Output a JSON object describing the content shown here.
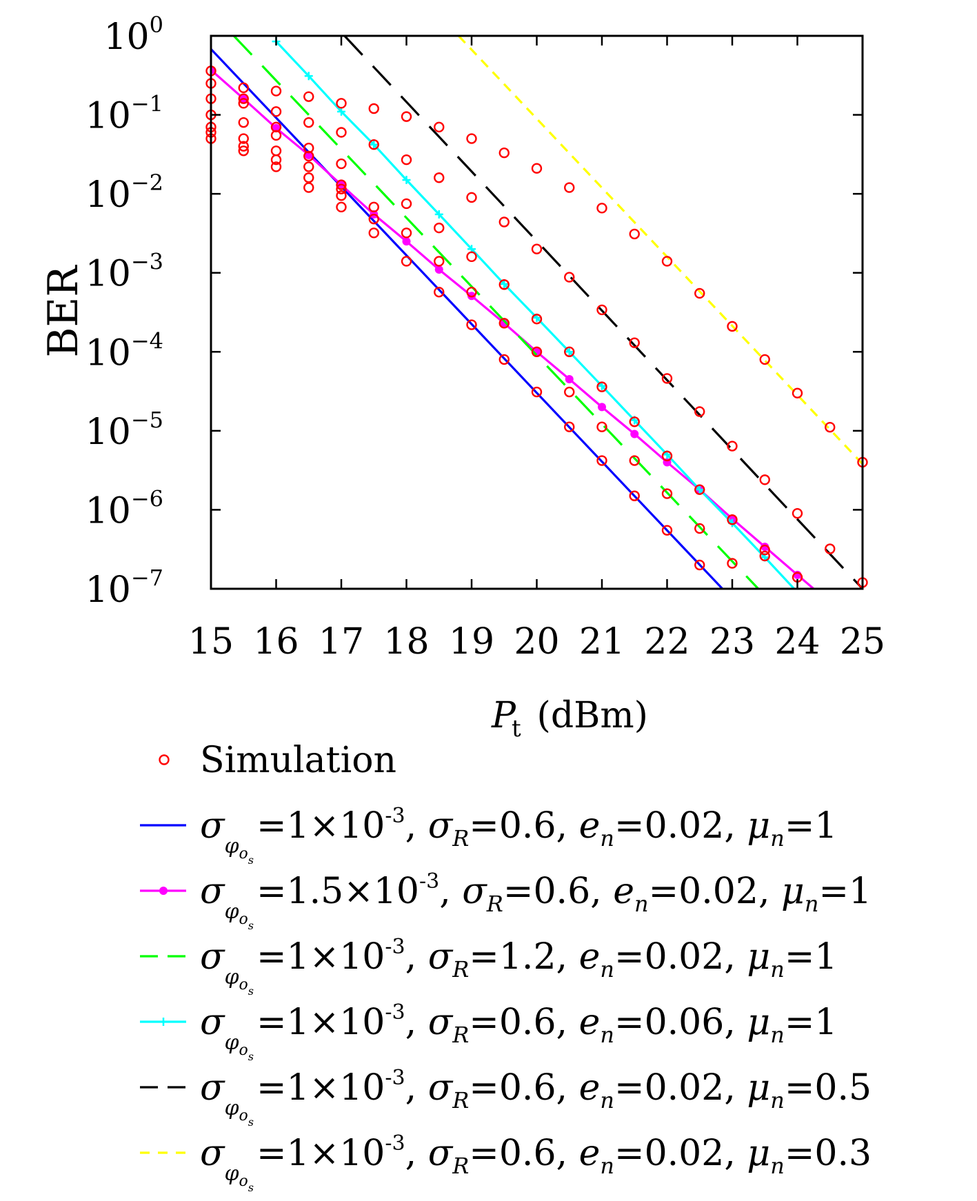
{
  "chart_data": {
    "type": "line",
    "yscale": "log",
    "xlabel": "P_t (dBm)",
    "ylabel": "BER",
    "xlim": [
      15,
      25
    ],
    "ylim": [
      1e-07,
      1
    ],
    "xticks": [
      15,
      16,
      17,
      18,
      19,
      20,
      21,
      22,
      23,
      24,
      25
    ],
    "yticks": [
      0,
      -1,
      -2,
      -3,
      -4,
      -5,
      -6,
      -7
    ],
    "grid": false,
    "legend_position": "below",
    "simulation": {
      "name": "Simulation",
      "color": "#ff0000",
      "x": [
        15,
        15,
        15,
        15,
        15,
        15,
        15,
        15.5,
        15.5,
        15.5,
        15.5,
        15.5,
        15.5,
        15.5,
        16,
        16,
        16,
        16,
        16,
        16,
        16,
        16.5,
        16.5,
        16.5,
        16.5,
        16.5,
        16.5,
        16.5,
        17,
        17,
        17,
        17,
        17,
        17,
        17,
        17.5,
        17.5,
        17.5,
        17.5,
        17.5,
        18,
        18,
        18,
        18,
        18,
        18.5,
        18.5,
        18.5,
        18.5,
        18.5,
        19,
        19,
        19,
        19,
        19,
        19.5,
        19.5,
        19.5,
        19.5,
        19.5,
        20,
        20,
        20,
        20,
        20,
        20.5,
        20.5,
        20.5,
        20.5,
        20.5,
        21,
        21,
        21,
        21,
        21,
        21.5,
        21.5,
        21.5,
        21.5,
        21.5,
        22,
        22,
        22,
        22,
        22,
        22.5,
        22.5,
        22.5,
        22.5,
        22.5,
        23,
        23,
        23,
        23,
        23.5,
        23.5,
        23.5,
        23.5,
        24,
        24,
        24,
        24.5,
        24.5,
        25,
        25
      ],
      "y": [
        0.36,
        0.25,
        0.16,
        0.1,
        0.07,
        0.06,
        0.05,
        0.22,
        0.14,
        0.08,
        0.05,
        0.04,
        0.035,
        0.16,
        0.2,
        0.11,
        0.055,
        0.035,
        0.027,
        0.022,
        0.07,
        0.17,
        0.08,
        0.038,
        0.022,
        0.016,
        0.012,
        0.03,
        0.14,
        0.06,
        0.024,
        0.013,
        0.0095,
        0.0068,
        0.0115,
        0.12,
        0.042,
        0.0068,
        0.0048,
        0.0032,
        0.095,
        0.027,
        0.0075,
        0.0032,
        0.0014,
        0.07,
        0.016,
        0.0037,
        0.0014,
        0.00057,
        0.05,
        0.009,
        0.0016,
        0.00057,
        0.00022,
        0.033,
        0.0044,
        0.00071,
        0.00023,
        8e-05,
        0.021,
        0.002,
        0.00026,
        0.0001,
        3.1e-05,
        0.012,
        0.00088,
        0.0001,
        3.1e-05,
        1.12e-05,
        0.0066,
        0.00034,
        3.6e-05,
        1.12e-05,
        4.2e-06,
        0.0031,
        0.00013,
        1.3e-05,
        4.2e-06,
        1.5e-06,
        0.0014,
        4.6e-05,
        4.8e-06,
        1.6e-06,
        5.5e-07,
        0.00055,
        1.75e-05,
        1.8e-06,
        5.8e-07,
        2e-07,
        0.00021,
        6.4e-06,
        7.5e-07,
        2.1e-07,
        8e-05,
        2.4e-06,
        3.1e-07,
        2.6e-07,
        3e-05,
        9e-07,
        1.4e-07,
        1.11e-05,
        3.2e-07,
        4e-06,
        1.2e-07
      ]
    },
    "series": [
      {
        "name": "σ_φos=1×10^-3, σ_R=0.6, e_n=0.02, μ_n=1",
        "color": "#0000ff",
        "style": "solid",
        "marker": "none",
        "x": [
          15,
          22.85
        ],
        "y": [
          0.68,
          1e-07
        ]
      },
      {
        "name": "σ_φos=1.5×10^-3, σ_R=0.6, e_n=0.02, μ_n=1",
        "color": "#ff00ff",
        "style": "solid",
        "marker": "dot",
        "x": [
          15,
          15.5,
          16,
          16.5,
          17,
          17.5,
          18,
          18.5,
          19,
          19.5,
          20,
          20.5,
          21,
          21.5,
          22,
          22.5,
          23,
          23.5,
          24,
          24.25
        ],
        "y": [
          0.37,
          0.16,
          0.068,
          0.031,
          0.013,
          0.0055,
          0.0025,
          0.0011,
          0.00051,
          0.00023,
          0.0001,
          4.5e-05,
          2e-05,
          9.1e-06,
          4e-06,
          1.8e-06,
          7.7e-07,
          3.4e-07,
          1.5e-07,
          1e-07
        ]
      },
      {
        "name": "σ_φos=1×10^-3, σ_R=1.2, e_n=0.02, μ_n=1",
        "color": "#00ff00",
        "style": "dashed",
        "marker": "none",
        "x": [
          15.35,
          23.4
        ],
        "y": [
          1.0,
          1e-07
        ]
      },
      {
        "name": "σ_φos=1×10^-3, σ_R=0.6, e_n=0.06, μ_n=1",
        "color": "#00ffff",
        "style": "solid",
        "marker": "plus",
        "x": [
          16,
          16.5,
          17,
          17.5,
          18,
          18.5,
          19,
          19.5,
          20,
          20.5,
          21,
          21.5,
          22,
          22.5,
          23,
          23.5,
          23.95
        ],
        "y": [
          0.85,
          0.31,
          0.11,
          0.042,
          0.015,
          0.0055,
          0.002,
          0.00072,
          0.00027,
          0.0001,
          3.7e-05,
          1.36e-05,
          5e-06,
          1.8e-06,
          6.8e-07,
          2.5e-07,
          1e-07
        ]
      },
      {
        "name": "σ_φos=1×10^-3, σ_R=0.6, e_n=0.02, μ_n=0.5",
        "color": "#000000",
        "style": "dashed",
        "marker": "none",
        "x": [
          17.05,
          25
        ],
        "y": [
          1.0,
          1e-07
        ]
      },
      {
        "name": "σ_φos=1×10^-3, σ_R=0.6, e_n=0.02, μ_n=0.3",
        "color": "#ffff00",
        "style": "dotted-dash",
        "marker": "none",
        "x": [
          18.8,
          25
        ],
        "y": [
          1.0,
          3.8e-06
        ]
      }
    ]
  },
  "axes": {
    "xtick_labels": [
      "15",
      "16",
      "17",
      "18",
      "19",
      "20",
      "21",
      "22",
      "23",
      "24",
      "25"
    ],
    "ytick_base": "10",
    "ytick_exponents": [
      "0",
      "−1",
      "−2",
      "−3",
      "−4",
      "−5",
      "−6",
      "−7"
    ],
    "ylabel": "BER",
    "xlabel_symbol": "P",
    "xlabel_subscript": "t",
    "xlabel_unit": " (dBm)"
  },
  "legend": {
    "entries": [
      {
        "label_parts": [
          "Simulation"
        ]
      },
      {
        "sigma_phi_value": "=1×10",
        "sigma_phi_exp": "-3",
        "sigma_r_value": "=0.6,",
        "en_value": "=0.02,",
        "mun_value": "=1"
      },
      {
        "sigma_phi_value": "=1.5×10",
        "sigma_phi_exp": "-3",
        "sigma_r_value": "=0.6,",
        "en_value": "=0.02,",
        "mun_value": "=1"
      },
      {
        "sigma_phi_value": "=1×10",
        "sigma_phi_exp": "-3",
        "sigma_r_value": "=1.2,",
        "en_value": "=0.02,",
        "mun_value": "=1"
      },
      {
        "sigma_phi_value": "=1×10",
        "sigma_phi_exp": "-3",
        "sigma_r_value": "=0.6,",
        "en_value": "=0.06,",
        "mun_value": "=1"
      },
      {
        "sigma_phi_value": "=1×10",
        "sigma_phi_exp": "-3",
        "sigma_r_value": "=0.6,",
        "en_value": "=0.02,",
        "mun_value": "=0.5"
      },
      {
        "sigma_phi_value": "=1×10",
        "sigma_phi_exp": "-3",
        "sigma_r_value": "=0.6,",
        "en_value": "=0.02,",
        "mun_value": "=0.3"
      }
    ]
  }
}
